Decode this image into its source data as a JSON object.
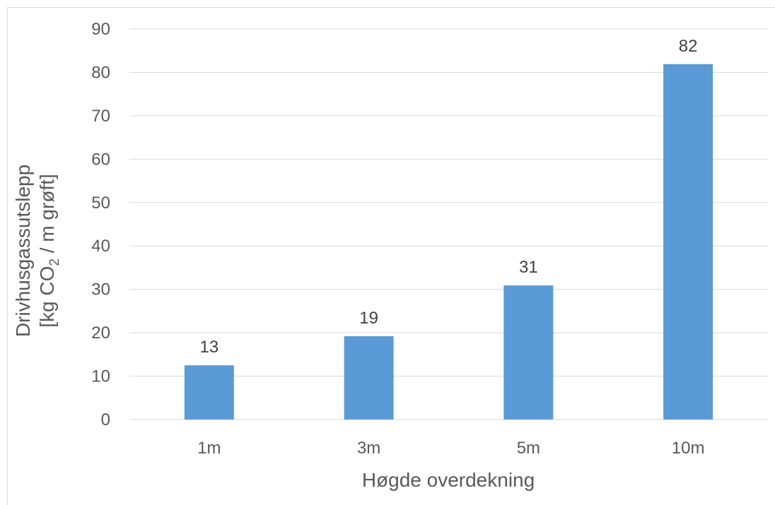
{
  "chart_data": {
    "type": "bar",
    "title": "",
    "categories": [
      "1m",
      "3m",
      "5m",
      "10m"
    ],
    "values": [
      12.5,
      19.2,
      30.9,
      81.9
    ],
    "data_labels": [
      "13",
      "19",
      "31",
      "82"
    ],
    "xlabel": "Høgde overdekning",
    "ylabel_line1": "Drivhusgassutslepp",
    "ylabel_line2_prefix": "[kg CO",
    "ylabel_line2_sub": "2",
    "ylabel_line2_suffix": " / m grøft]",
    "ylim": [
      0,
      90
    ],
    "yticks": [
      "0",
      "10",
      "20",
      "30",
      "40",
      "50",
      "60",
      "70",
      "80",
      "90"
    ],
    "grid": true,
    "legend": "none",
    "bar_color": "#5b9bd5",
    "grid_color": "#d9d9d9"
  }
}
